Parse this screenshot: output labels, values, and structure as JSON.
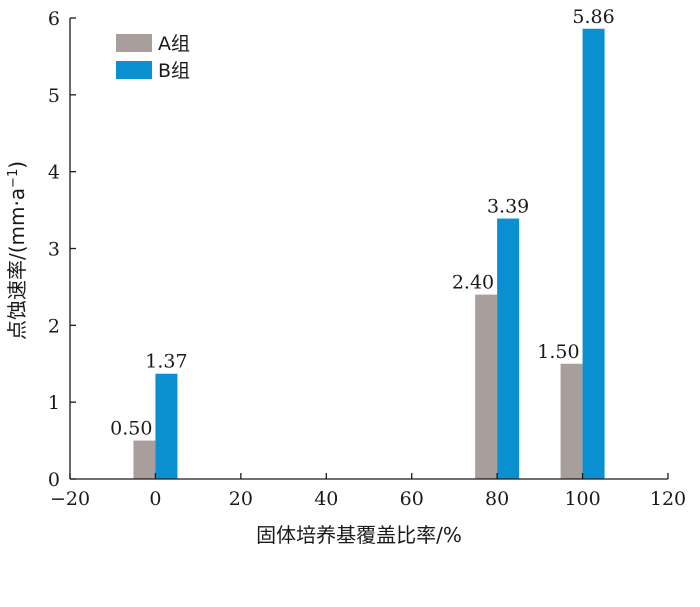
{
  "chart_data": {
    "type": "bar",
    "x": [
      0,
      80,
      100
    ],
    "series": [
      {
        "name": "A组",
        "color": "#a89f9c",
        "values": [
          0.5,
          2.4,
          1.5
        ]
      },
      {
        "name": "B组",
        "color": "#0a8fd0",
        "values": [
          1.37,
          3.39,
          5.86
        ]
      }
    ],
    "data_labels": [
      [
        "0.50",
        "2.40",
        "1.50"
      ],
      [
        "1.37",
        "3.39",
        "5.86"
      ]
    ],
    "xlabel": "固体培养基覆盖比率/%",
    "ylabel": "点蚀速率/(mm·a",
    "ylabel_superscript": "−1",
    "ylabel_suffix": ")",
    "xlim": [
      -20,
      120
    ],
    "ylim": [
      0,
      6
    ],
    "xticks": [
      -20,
      0,
      20,
      40,
      60,
      80,
      100,
      120
    ],
    "xtick_labels": [
      "−20",
      "0",
      "20",
      "40",
      "60",
      "80",
      "100",
      "120"
    ],
    "yticks": [
      0,
      1,
      2,
      3,
      4,
      5,
      6
    ],
    "ytick_labels": [
      "0",
      "1",
      "2",
      "3",
      "4",
      "5",
      "6"
    ],
    "grid": false,
    "legend_position": "top-left"
  }
}
